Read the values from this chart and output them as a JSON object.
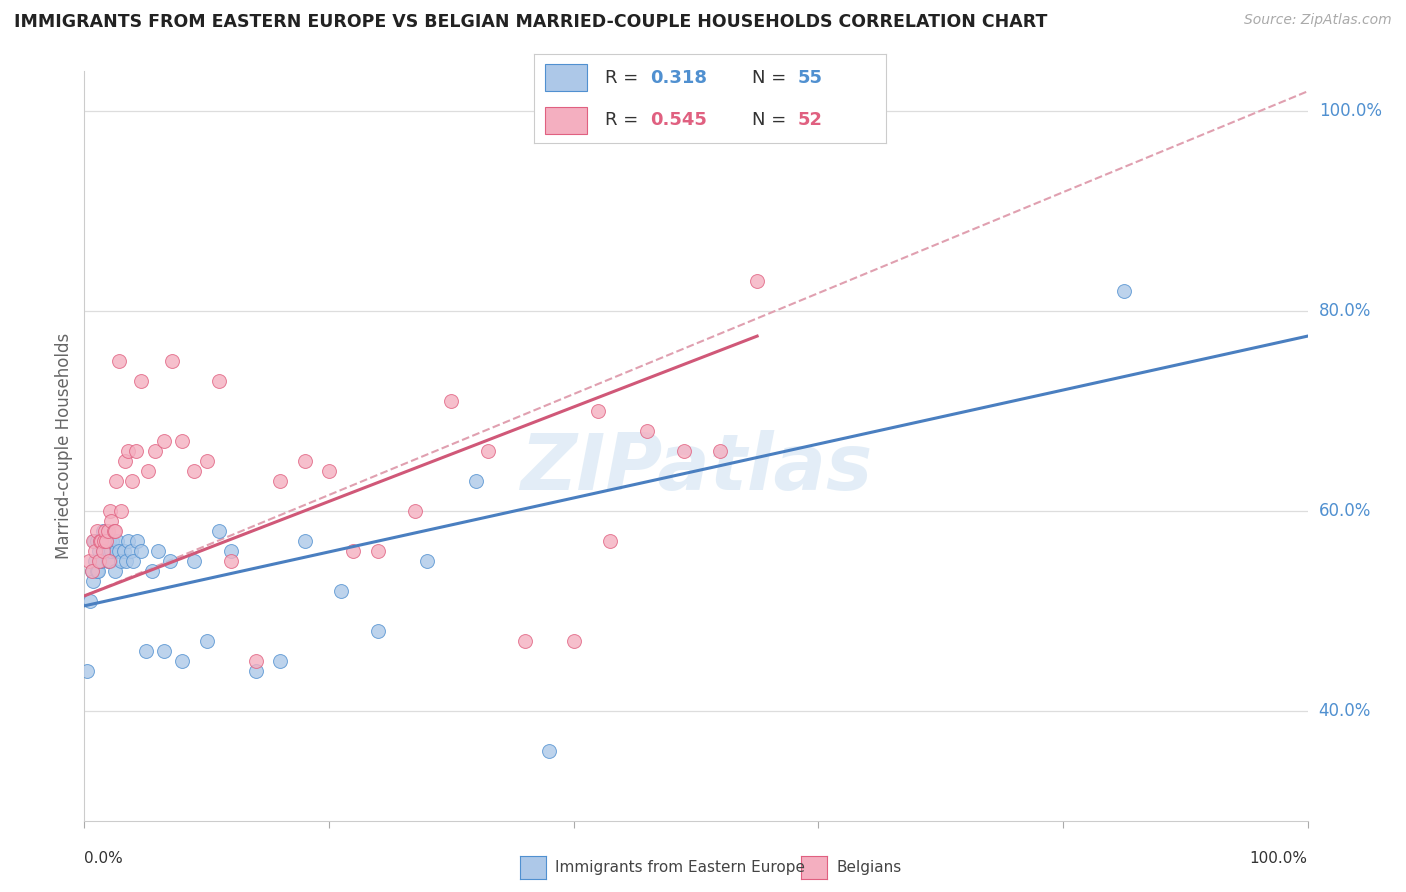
{
  "title": "IMMIGRANTS FROM EASTERN EUROPE VS BELGIAN MARRIED-COUPLE HOUSEHOLDS CORRELATION CHART",
  "source": "Source: ZipAtlas.com",
  "ylabel": "Married-couple Households",
  "legend_label1": "Immigrants from Eastern Europe",
  "legend_label2": "Belgians",
  "legend_R1": "R = 0.318",
  "legend_N1": "N = 55",
  "legend_R2": "R = 0.545",
  "legend_N2": "N = 52",
  "color_blue": "#adc8e8",
  "color_pink": "#f4afc0",
  "color_blue_dark": "#5090d0",
  "color_pink_dark": "#e06080",
  "color_blue_line": "#4a7fc0",
  "color_pink_line": "#d05878",
  "color_dashed": "#e0a0b0",
  "watermark_color": "#c8ddf0",
  "watermark": "ZIPatlas",
  "blue_scatter_x": [
    0.002,
    0.005,
    0.006,
    0.007,
    0.008,
    0.009,
    0.01,
    0.01,
    0.011,
    0.012,
    0.013,
    0.013,
    0.014,
    0.015,
    0.015,
    0.016,
    0.017,
    0.018,
    0.019,
    0.02,
    0.02,
    0.021,
    0.022,
    0.023,
    0.025,
    0.026,
    0.027,
    0.028,
    0.03,
    0.032,
    0.034,
    0.036,
    0.038,
    0.04,
    0.043,
    0.046,
    0.05,
    0.055,
    0.06,
    0.065,
    0.07,
    0.08,
    0.09,
    0.1,
    0.11,
    0.12,
    0.14,
    0.16,
    0.18,
    0.21,
    0.24,
    0.28,
    0.32,
    0.38,
    0.85
  ],
  "blue_scatter_y": [
    0.44,
    0.51,
    0.54,
    0.53,
    0.57,
    0.55,
    0.54,
    0.57,
    0.54,
    0.56,
    0.55,
    0.57,
    0.55,
    0.56,
    0.58,
    0.56,
    0.57,
    0.56,
    0.55,
    0.56,
    0.57,
    0.55,
    0.56,
    0.57,
    0.54,
    0.56,
    0.57,
    0.56,
    0.55,
    0.56,
    0.55,
    0.57,
    0.56,
    0.55,
    0.57,
    0.56,
    0.46,
    0.54,
    0.56,
    0.46,
    0.55,
    0.45,
    0.55,
    0.47,
    0.58,
    0.56,
    0.44,
    0.45,
    0.57,
    0.52,
    0.48,
    0.55,
    0.63,
    0.36,
    0.82
  ],
  "pink_scatter_x": [
    0.004,
    0.006,
    0.007,
    0.009,
    0.01,
    0.012,
    0.013,
    0.014,
    0.015,
    0.016,
    0.017,
    0.018,
    0.019,
    0.02,
    0.021,
    0.022,
    0.024,
    0.025,
    0.026,
    0.028,
    0.03,
    0.033,
    0.036,
    0.039,
    0.042,
    0.046,
    0.052,
    0.058,
    0.065,
    0.072,
    0.08,
    0.09,
    0.1,
    0.11,
    0.12,
    0.14,
    0.16,
    0.18,
    0.2,
    0.22,
    0.24,
    0.27,
    0.3,
    0.33,
    0.36,
    0.4,
    0.43,
    0.46,
    0.49,
    0.52,
    0.55,
    0.42
  ],
  "pink_scatter_y": [
    0.55,
    0.54,
    0.57,
    0.56,
    0.58,
    0.55,
    0.57,
    0.57,
    0.56,
    0.57,
    0.58,
    0.57,
    0.58,
    0.55,
    0.6,
    0.59,
    0.58,
    0.58,
    0.63,
    0.75,
    0.6,
    0.65,
    0.66,
    0.63,
    0.66,
    0.73,
    0.64,
    0.66,
    0.67,
    0.75,
    0.67,
    0.64,
    0.65,
    0.73,
    0.55,
    0.45,
    0.63,
    0.65,
    0.64,
    0.56,
    0.56,
    0.6,
    0.71,
    0.66,
    0.47,
    0.47,
    0.57,
    0.68,
    0.66,
    0.66,
    0.83,
    0.7
  ],
  "blue_line_x0": 0.0,
  "blue_line_x1": 1.0,
  "blue_line_y0": 0.505,
  "blue_line_y1": 0.775,
  "pink_line_x0": 0.0,
  "pink_line_x1": 0.55,
  "pink_line_y0": 0.515,
  "pink_line_y1": 0.775,
  "dashed_line_x0": 0.0,
  "dashed_line_x1": 1.0,
  "dashed_line_y0": 0.515,
  "dashed_line_y1": 1.02,
  "xmin": 0.0,
  "xmax": 1.0,
  "ymin": 0.29,
  "ymax": 1.04,
  "ytick_vals": [
    0.4,
    0.6,
    0.8,
    1.0
  ],
  "xtick_vals": [
    0.0,
    0.2,
    0.4,
    0.6,
    0.8,
    1.0
  ],
  "figwidth": 14.06,
  "figheight": 8.92
}
